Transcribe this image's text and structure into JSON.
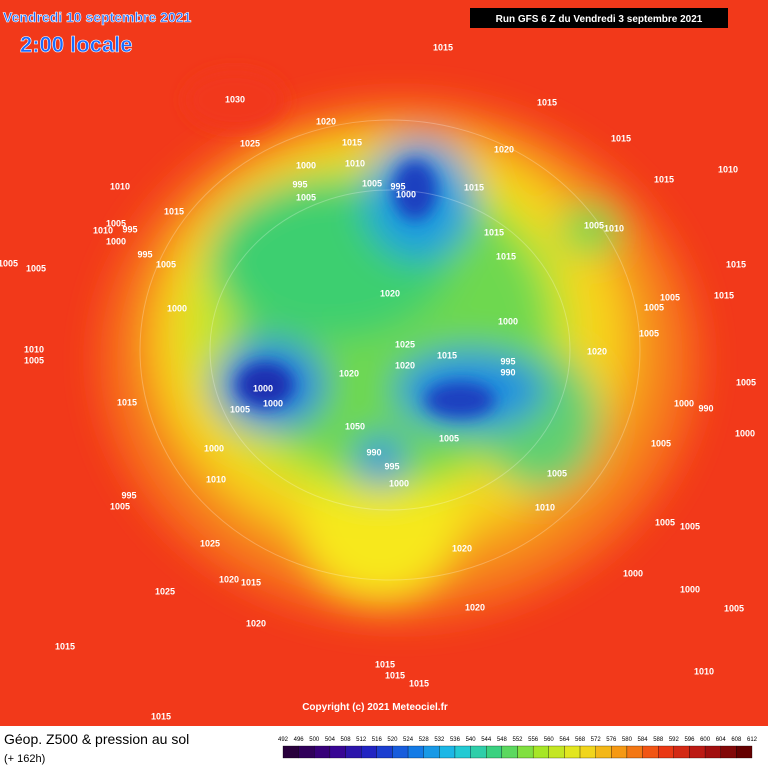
{
  "header": {
    "date": "Vendredi 10 septembre 2021",
    "time": "2:00 locale",
    "run": "Run GFS 6 Z du Vendredi 3 septembre 2021"
  },
  "map": {
    "isobar_labels": [
      1015,
      1015,
      1030,
      1020,
      1025,
      1015,
      1010,
      1000,
      995,
      1005,
      1005,
      995,
      1000,
      1015,
      1020,
      1015,
      1015,
      1010,
      1010,
      1015,
      1005,
      1010,
      995,
      1000,
      995,
      1005,
      1005,
      1005,
      1015,
      1015,
      1005,
      1010,
      1015,
      1015,
      1005,
      1005,
      1005,
      1020,
      1000,
      1025,
      1015,
      1020,
      1000,
      995,
      990,
      1020,
      1010,
      1005,
      1005,
      1000,
      990,
      1000,
      1020,
      1000,
      1005,
      1015,
      1050,
      1005,
      990,
      995,
      1000,
      1000,
      1005,
      1010,
      1005,
      1000,
      1010,
      995,
      1005,
      1025,
      1020,
      1020,
      1015,
      1025,
      1000,
      1000,
      1005,
      1005,
      1005,
      1020,
      1020,
      1015,
      1015,
      1015,
      1015,
      1010,
      1015
    ],
    "copyright": "Copyright (c) 2021 Meteociel.fr"
  },
  "footer": {
    "title": "Géop. Z500 & pression au sol",
    "lead": "(+ 162h)",
    "scale": [
      492,
      496,
      500,
      504,
      508,
      512,
      516,
      520,
      524,
      528,
      532,
      536,
      540,
      544,
      548,
      552,
      556,
      560,
      564,
      568,
      572,
      576,
      580,
      584,
      588,
      592,
      596,
      600,
      604,
      608,
      612
    ]
  }
}
